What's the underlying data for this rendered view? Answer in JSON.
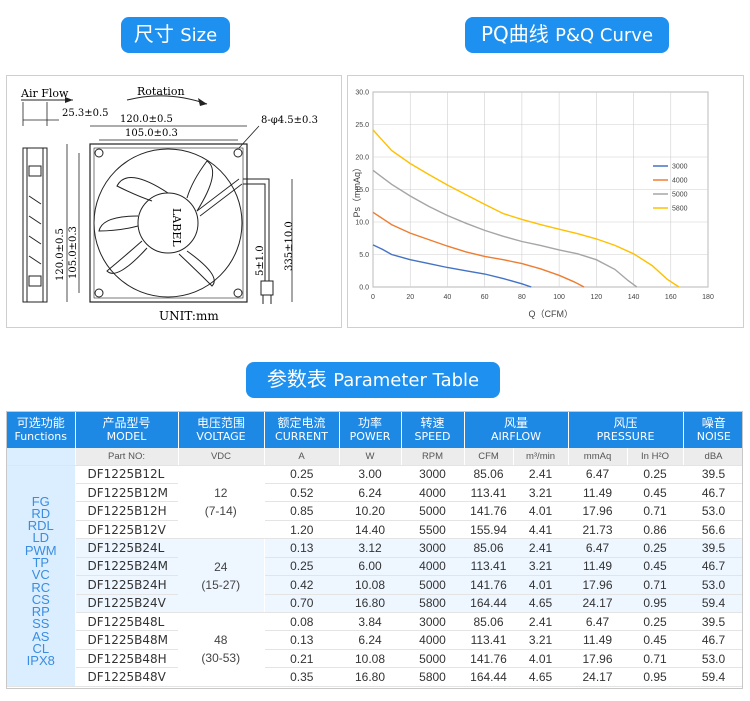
{
  "headers": {
    "size": {
      "zh": "尺寸",
      "en": "Size"
    },
    "curve": {
      "prefix": "PQ曲线",
      "en": "P&Q Curve"
    },
    "params": {
      "zh": "参数表",
      "en": "Parameter Table"
    }
  },
  "drawing": {
    "air_flow": "Air Flow",
    "rotation": "Rotation",
    "depth": "25.3±0.5",
    "w_outer": "120.0±0.5",
    "w_inner": "105.0±0.3",
    "holes": "8-φ4.5±0.3",
    "h_outer": "120.0±0.5",
    "h_inner": "105.0±0.3",
    "label": "LABEL",
    "lead_a": "5±1.0",
    "lead_b": "335±10.0",
    "unit": "UNIT:mm"
  },
  "chart_data": {
    "type": "line",
    "xlabel": "Q（CFM）",
    "ylabel": "Ps（mmAq）",
    "xlim": [
      0,
      180
    ],
    "ylim": [
      0,
      30
    ],
    "x_ticks": [
      "0",
      "20",
      "40",
      "60",
      "80",
      "100",
      "120",
      "140",
      "160",
      "180"
    ],
    "y_ticks": [
      "0.0",
      "5.0",
      "10.0",
      "15.0",
      "20.0",
      "25.0",
      "30.0"
    ],
    "grid": true,
    "legend_position": "right",
    "series": [
      {
        "name": "3000",
        "color": "#4472c4",
        "points": [
          [
            0,
            6.47
          ],
          [
            5,
            5.8
          ],
          [
            10,
            5.0
          ],
          [
            20,
            4.2
          ],
          [
            30,
            3.6
          ],
          [
            40,
            3.0
          ],
          [
            50,
            2.5
          ],
          [
            60,
            2.0
          ],
          [
            70,
            1.3
          ],
          [
            80,
            0.5
          ],
          [
            85.06,
            0
          ]
        ]
      },
      {
        "name": "4000",
        "color": "#ed7d31",
        "points": [
          [
            0,
            11.49
          ],
          [
            10,
            9.6
          ],
          [
            20,
            8.3
          ],
          [
            30,
            7.3
          ],
          [
            40,
            6.3
          ],
          [
            50,
            5.4
          ],
          [
            60,
            4.7
          ],
          [
            70,
            4.2
          ],
          [
            80,
            3.6
          ],
          [
            90,
            2.8
          ],
          [
            100,
            1.8
          ],
          [
            108,
            0.8
          ],
          [
            113.41,
            0
          ]
        ]
      },
      {
        "name": "5000",
        "color": "#a5a5a5",
        "points": [
          [
            0,
            17.96
          ],
          [
            10,
            15.8
          ],
          [
            20,
            14.0
          ],
          [
            30,
            12.4
          ],
          [
            40,
            11.0
          ],
          [
            50,
            9.8
          ],
          [
            60,
            8.7
          ],
          [
            70,
            7.8
          ],
          [
            80,
            7.0
          ],
          [
            90,
            6.4
          ],
          [
            100,
            5.7
          ],
          [
            110,
            5.1
          ],
          [
            120,
            4.2
          ],
          [
            130,
            2.7
          ],
          [
            137,
            1.0
          ],
          [
            141.76,
            0
          ]
        ]
      },
      {
        "name": "5800",
        "color": "#ffc000",
        "points": [
          [
            0,
            24.17
          ],
          [
            10,
            21.0
          ],
          [
            20,
            19.0
          ],
          [
            30,
            17.3
          ],
          [
            40,
            15.7
          ],
          [
            50,
            14.2
          ],
          [
            60,
            12.7
          ],
          [
            70,
            11.3
          ],
          [
            80,
            10.4
          ],
          [
            90,
            9.6
          ],
          [
            100,
            8.9
          ],
          [
            110,
            8.2
          ],
          [
            120,
            7.4
          ],
          [
            130,
            6.4
          ],
          [
            140,
            5.1
          ],
          [
            150,
            3.3
          ],
          [
            158,
            1.2
          ],
          [
            164.44,
            0
          ]
        ]
      }
    ]
  },
  "table": {
    "columns": [
      {
        "zh": "可选功能",
        "en": "Functions"
      },
      {
        "zh": "产品型号",
        "en": "MODEL"
      },
      {
        "zh": "电压范围",
        "en": "VOLTAGE"
      },
      {
        "zh": "额定电流",
        "en": "CURRENT"
      },
      {
        "zh": "功率",
        "en": "POWER"
      },
      {
        "zh": "转速",
        "en": "SPEED"
      },
      {
        "zh": "风量",
        "en": "AIRFLOW"
      },
      {
        "zh": "风压",
        "en": "PRESSURE"
      },
      {
        "zh": "噪音",
        "en": "NOISE"
      }
    ],
    "units": [
      "Part NO:",
      "VDC",
      "A",
      "W",
      "RPM",
      "CFM",
      "m³/min",
      "mmAq",
      "In H²O",
      "dBA"
    ],
    "functions": [
      "FG",
      "RD",
      "RDL",
      "LD",
      "PWM",
      "TP",
      "VC",
      "RC",
      "CS",
      "RP",
      "SS",
      "AS",
      "CL",
      "IPX8"
    ],
    "voltage_groups": [
      {
        "v": "12",
        "range": "(7-14)"
      },
      {
        "v": "24",
        "range": "(15-27)"
      },
      {
        "v": "48",
        "range": "(30-53)"
      }
    ],
    "rows": [
      [
        "DF1225B12L",
        "0.25",
        "3.00",
        "3000",
        "85.06",
        "2.41",
        "6.47",
        "0.25",
        "39.5"
      ],
      [
        "DF1225B12M",
        "0.52",
        "6.24",
        "4000",
        "113.41",
        "3.21",
        "11.49",
        "0.45",
        "46.7"
      ],
      [
        "DF1225B12H",
        "0.85",
        "10.20",
        "5000",
        "141.76",
        "4.01",
        "17.96",
        "0.71",
        "53.0"
      ],
      [
        "DF1225B12V",
        "1.20",
        "14.40",
        "5500",
        "155.94",
        "4.41",
        "21.73",
        "0.86",
        "56.6"
      ],
      [
        "DF1225B24L",
        "0.13",
        "3.12",
        "3000",
        "85.06",
        "2.41",
        "6.47",
        "0.25",
        "39.5"
      ],
      [
        "DF1225B24M",
        "0.25",
        "6.00",
        "4000",
        "113.41",
        "3.21",
        "11.49",
        "0.45",
        "46.7"
      ],
      [
        "DF1225B24H",
        "0.42",
        "10.08",
        "5000",
        "141.76",
        "4.01",
        "17.96",
        "0.71",
        "53.0"
      ],
      [
        "DF1225B24V",
        "0.70",
        "16.80",
        "5800",
        "164.44",
        "4.65",
        "24.17",
        "0.95",
        "59.4"
      ],
      [
        "DF1225B48L",
        "0.08",
        "3.84",
        "3000",
        "85.06",
        "2.41",
        "6.47",
        "0.25",
        "39.5"
      ],
      [
        "DF1225B48M",
        "0.13",
        "6.24",
        "4000",
        "113.41",
        "3.21",
        "11.49",
        "0.45",
        "46.7"
      ],
      [
        "DF1225B48H",
        "0.21",
        "10.08",
        "5000",
        "141.76",
        "4.01",
        "17.96",
        "0.71",
        "53.0"
      ],
      [
        "DF1225B48V",
        "0.35",
        "16.80",
        "5800",
        "164.44",
        "4.65",
        "24.17",
        "0.95",
        "59.4"
      ]
    ]
  }
}
